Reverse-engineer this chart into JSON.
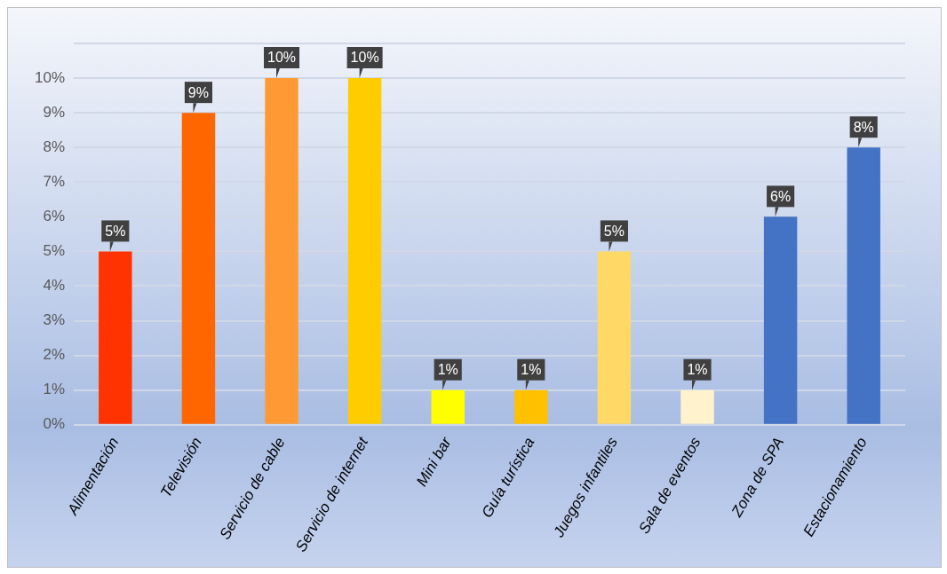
{
  "chart_data": {
    "type": "bar",
    "categories": [
      "Alimentación",
      "Televisión",
      "Servicio de cable",
      "Servicio de internet",
      "Mini bar",
      "Guía turística",
      "Juegos infantiles",
      "Sala de eventos",
      "Zona de SPA",
      "Estacionamiento"
    ],
    "values": [
      5,
      9,
      10,
      10,
      1,
      1,
      5,
      1,
      6,
      8
    ],
    "colors": [
      "#ff3300",
      "#ff6600",
      "#ff9933",
      "#ffcc00",
      "#ffff00",
      "#ffc000",
      "#ffd966",
      "#fff2cc",
      "#4472c4",
      "#4472c4"
    ],
    "value_labels": [
      "5%",
      "9%",
      "10%",
      "10%",
      "1%",
      "1%",
      "5%",
      "1%",
      "6%",
      "8%"
    ],
    "ylim": [
      0,
      11
    ],
    "yticks": [
      {
        "value": 0,
        "label": "0%"
      },
      {
        "value": 1,
        "label": "1%"
      },
      {
        "value": 2,
        "label": "2%"
      },
      {
        "value": 3,
        "label": "3%"
      },
      {
        "value": 4,
        "label": "4%"
      },
      {
        "value": 5,
        "label": "5%"
      },
      {
        "value": 6,
        "label": "6%"
      },
      {
        "value": 7,
        "label": "7%"
      },
      {
        "value": 8,
        "label": "8%"
      },
      {
        "value": 9,
        "label": "9%"
      },
      {
        "value": 10,
        "label": "10%"
      },
      {
        "value": 11,
        "label": null
      }
    ],
    "grid": "y",
    "legend": false
  }
}
